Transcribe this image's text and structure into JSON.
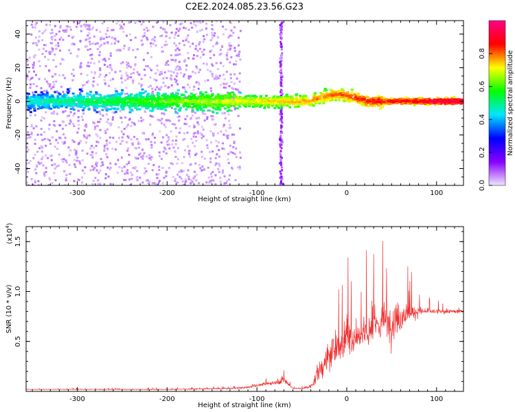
{
  "title": "C2E2.2024.085.23.56.G23",
  "chart_data": [
    {
      "type": "heatmap",
      "xlabel": "Height of straight line (km)",
      "ylabel": "Frequency (Hz)",
      "xlim": [
        -357,
        130
      ],
      "ylim": [
        -50,
        48
      ],
      "xticks": [
        -300,
        -200,
        -100,
        0,
        100
      ],
      "yticks": [
        -40,
        -20,
        0,
        20,
        40
      ],
      "x_tick_labels": [
        "-300",
        "-200",
        "-100",
        "0",
        "100"
      ],
      "y_tick_labels": [
        "-40",
        "-20",
        "0",
        "20",
        "40"
      ],
      "colorbar": {
        "label": "Normalized spectral amplitude",
        "range": [
          0,
          1
        ],
        "ticks": [
          0.0,
          0.2,
          0.4,
          0.6,
          0.8
        ],
        "tick_labels": [
          "0.0",
          "0.2",
          "0.4",
          "0.6",
          "0.8"
        ],
        "colors": [
          "#f0e6ff",
          "#8800ff",
          "#0000ff",
          "#00e6ff",
          "#00ff00",
          "#ffff00",
          "#ff0000",
          "#ff0088"
        ]
      },
      "features": [
        {
          "name": "main band",
          "x_range": [
            -357,
            130
          ],
          "freq_center": 0,
          "freq_halfwidth": 7
        },
        {
          "name": "noise region",
          "x_range": [
            -357,
            -118
          ],
          "freq_range": [
            -50,
            48
          ]
        },
        {
          "name": "spike",
          "x_center": -73,
          "freq_range": [
            -50,
            48
          ]
        }
      ]
    },
    {
      "type": "line",
      "xlabel": "Height of straight line (km)",
      "ylabel": "SNR (10 * v/v)",
      "y_multiplier": "(x10",
      "y_multiplier_exp": "4",
      "y_multiplier_close": ")",
      "xlim": [
        -357,
        130
      ],
      "ylim": [
        0,
        1.65
      ],
      "xticks": [
        -300,
        -200,
        -100,
        0,
        100
      ],
      "yticks": [
        0.5,
        1.0,
        1.5
      ],
      "x_tick_labels": [
        "-300",
        "-200",
        "-100",
        "0",
        "100"
      ],
      "y_tick_labels": [
        "0.5",
        "1.0",
        "1.5"
      ],
      "color": "#f03030",
      "envelope": {
        "x": [
          -357,
          -200,
          -130,
          -110,
          -100,
          -80,
          -70,
          -60,
          -50,
          -40,
          -30,
          -20,
          -10,
          0,
          10,
          20,
          30,
          40,
          50,
          60,
          70,
          80,
          90,
          100,
          110,
          120,
          130
        ],
        "y_base": [
          0.02,
          0.02,
          0.03,
          0.04,
          0.06,
          0.09,
          0.12,
          0.03,
          0.03,
          0.05,
          0.2,
          0.35,
          0.45,
          0.5,
          0.55,
          0.6,
          0.65,
          0.7,
          0.7,
          0.75,
          0.78,
          0.8,
          0.8,
          0.8,
          0.8,
          0.8,
          0.8
        ],
        "y_spread": [
          0.01,
          0.02,
          0.03,
          0.05,
          0.06,
          0.1,
          0.22,
          0.02,
          0.04,
          0.1,
          0.45,
          0.7,
          0.75,
          0.8,
          0.85,
          0.9,
          0.95,
          0.95,
          0.95,
          0.7,
          0.4,
          0.25,
          0.15,
          0.12,
          0.1,
          0.1,
          0.1
        ]
      }
    }
  ]
}
